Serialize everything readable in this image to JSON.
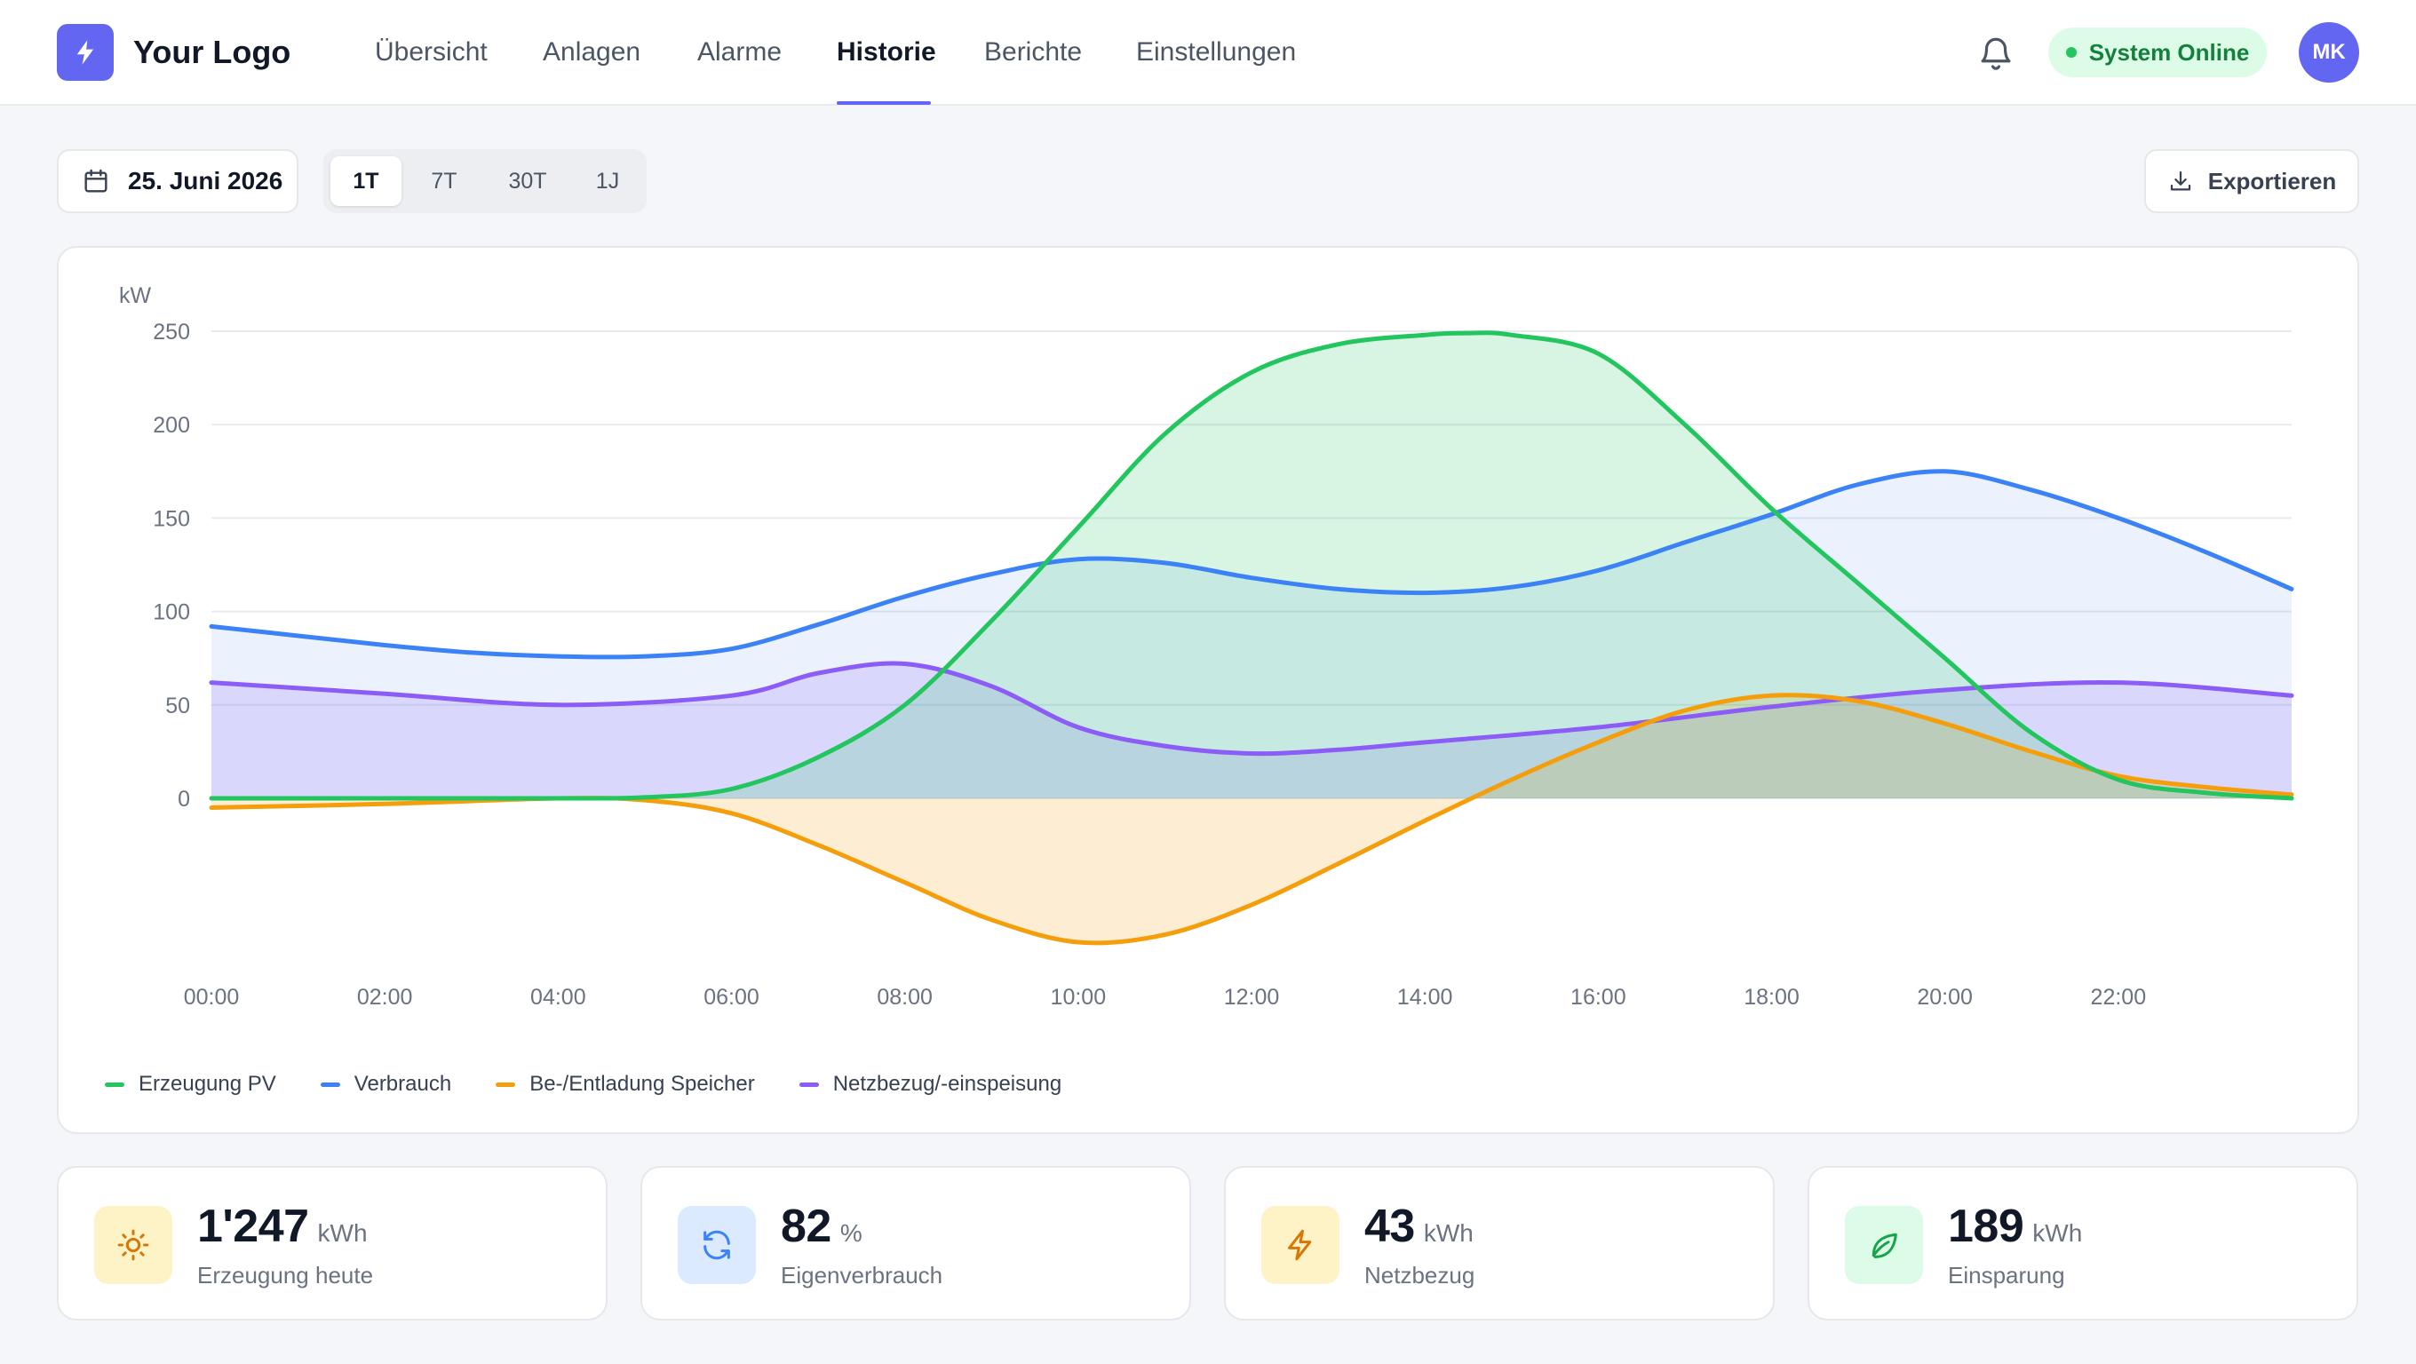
{
  "brand": {
    "name": "Your Logo",
    "accent": "#6366f1"
  },
  "nav": {
    "items": [
      {
        "label": "Übersicht"
      },
      {
        "label": "Anlagen"
      },
      {
        "label": "Alarme"
      },
      {
        "label": "Historie",
        "active": true
      },
      {
        "label": "Berichte"
      },
      {
        "label": "Einstellungen"
      }
    ]
  },
  "header": {
    "notifications_icon": "bell-icon",
    "status": {
      "label": "System Online",
      "color": "#22c55e"
    },
    "avatar": "MK"
  },
  "controls": {
    "date": "25. Juni 2026",
    "ranges": [
      {
        "label": "1T",
        "active": true
      },
      {
        "label": "7T"
      },
      {
        "label": "30T"
      },
      {
        "label": "1J"
      }
    ],
    "export_label": "Exportieren"
  },
  "chart_data": {
    "type": "area",
    "ylabel": "kW",
    "ylim": [
      -78,
      250
    ],
    "yticks": [
      0,
      50,
      100,
      150,
      200,
      250
    ],
    "xlim": [
      0,
      24
    ],
    "xticks": [
      "00:00",
      "02:00",
      "04:00",
      "06:00",
      "08:00",
      "10:00",
      "12:00",
      "14:00",
      "16:00",
      "18:00",
      "20:00",
      "22:00"
    ],
    "grid": true,
    "legend_position": "bottom-left",
    "series": [
      {
        "name": "Erzeugung PV",
        "color": "#22c55e",
        "x": [
          0,
          2,
          4,
          5,
          6,
          7,
          8,
          9,
          10,
          11,
          12,
          13,
          14,
          14.5,
          15,
          16,
          17,
          18,
          19,
          20,
          21,
          22,
          23,
          24
        ],
        "y": [
          0,
          0,
          0,
          0.5,
          5,
          22,
          50,
          95,
          145,
          195,
          228,
          243,
          248,
          249,
          248,
          238,
          200,
          155,
          115,
          75,
          35,
          10,
          3,
          0
        ]
      },
      {
        "name": "Verbrauch",
        "color": "#3b82f6",
        "x": [
          0,
          1,
          2,
          3,
          4,
          5,
          6,
          7,
          8,
          9,
          10,
          11,
          12,
          13,
          14,
          15,
          16,
          17,
          18,
          19,
          20,
          21,
          22,
          23,
          24
        ],
        "y": [
          92,
          87,
          82,
          78,
          76,
          76,
          80,
          93,
          108,
          120,
          128,
          126,
          118,
          112,
          110,
          113,
          122,
          137,
          152,
          168,
          175,
          165,
          150,
          132,
          112
        ]
      },
      {
        "name": "Be-/Entladung Speicher",
        "color": "#f59e0b",
        "x": [
          0,
          2,
          4,
          5,
          6,
          7,
          8,
          9,
          10,
          11,
          12,
          13,
          14,
          15,
          16,
          17,
          18,
          19,
          20,
          21,
          22,
          23,
          24
        ],
        "y": [
          -5,
          -3,
          0,
          -1,
          -8,
          -25,
          -45,
          -65,
          -77,
          -73,
          -57,
          -35,
          -12,
          10,
          30,
          47,
          55,
          52,
          40,
          25,
          12,
          6,
          2
        ]
      },
      {
        "name": "Netzbezug/-einspeisung",
        "color": "#8b5cf6",
        "x": [
          0,
          2,
          4,
          6,
          7,
          8,
          9,
          10,
          11,
          12,
          13,
          14,
          16,
          18,
          20,
          22,
          24
        ],
        "y": [
          62,
          56,
          50,
          55,
          67,
          72,
          60,
          38,
          28,
          24,
          26,
          30,
          38,
          49,
          58,
          62,
          55
        ]
      }
    ]
  },
  "stats": [
    {
      "value": "1'247",
      "unit": "kWh",
      "label": "Erzeugung heute",
      "icon": "sun-icon",
      "bg": "#fef3c7",
      "fg": "#d97706"
    },
    {
      "value": "82",
      "unit": "%",
      "label": "Eigenverbrauch",
      "icon": "refresh-icon",
      "bg": "#dbeafe",
      "fg": "#3b82f6"
    },
    {
      "value": "43",
      "unit": "kWh",
      "label": "Netzbezug",
      "icon": "lightning-icon",
      "bg": "#fef3c7",
      "fg": "#d97706"
    },
    {
      "value": "189",
      "unit": "kWh",
      "label": "Einsparung",
      "icon": "leaf-icon",
      "bg": "#dcfce7",
      "fg": "#16a34a"
    }
  ]
}
